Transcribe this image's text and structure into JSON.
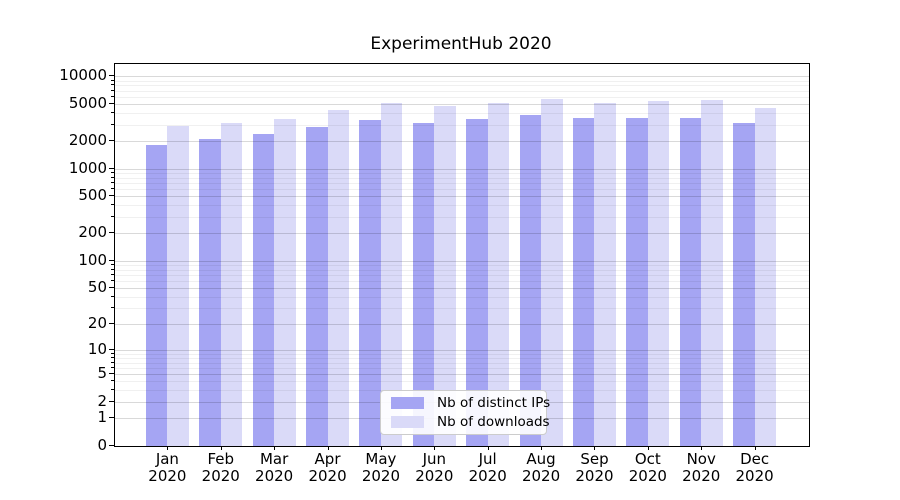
{
  "chart_data": {
    "type": "bar",
    "title": "ExperimentHub 2020",
    "x_categories": [
      "Jan",
      "Feb",
      "Mar",
      "Apr",
      "May",
      "Jun",
      "Jul",
      "Aug",
      "Sep",
      "Oct",
      "Nov",
      "Dec"
    ],
    "x_year": "2020",
    "series": [
      {
        "name": "Nb of distinct IPs",
        "color": "#a5a5f3",
        "values": [
          1820,
          2080,
          2380,
          2800,
          3400,
          3120,
          3450,
          3800,
          3550,
          3500,
          3550,
          3150
        ]
      },
      {
        "name": "Nb of downloads",
        "color": "#dadaf8",
        "values": [
          2880,
          3120,
          3450,
          4300,
          5150,
          4750,
          5150,
          5700,
          5200,
          5400,
          5500,
          4600
        ]
      }
    ],
    "yscale": {
      "type": "log1p",
      "top_value": 13600
    },
    "y_ticks": [
      10000,
      5000,
      2000,
      1000,
      500,
      200,
      100,
      50,
      20,
      10,
      5,
      2,
      1,
      0
    ],
    "y_minor_ticks": [
      3,
      4,
      6,
      7,
      8,
      9,
      30,
      40,
      60,
      70,
      80,
      90,
      300,
      400,
      600,
      700,
      800,
      900,
      3000,
      4000,
      6000,
      7000,
      8000,
      9000
    ],
    "grid": true,
    "legend_position": "lower-center-inside",
    "background": "#ffffff",
    "spine_color": "#000000"
  }
}
